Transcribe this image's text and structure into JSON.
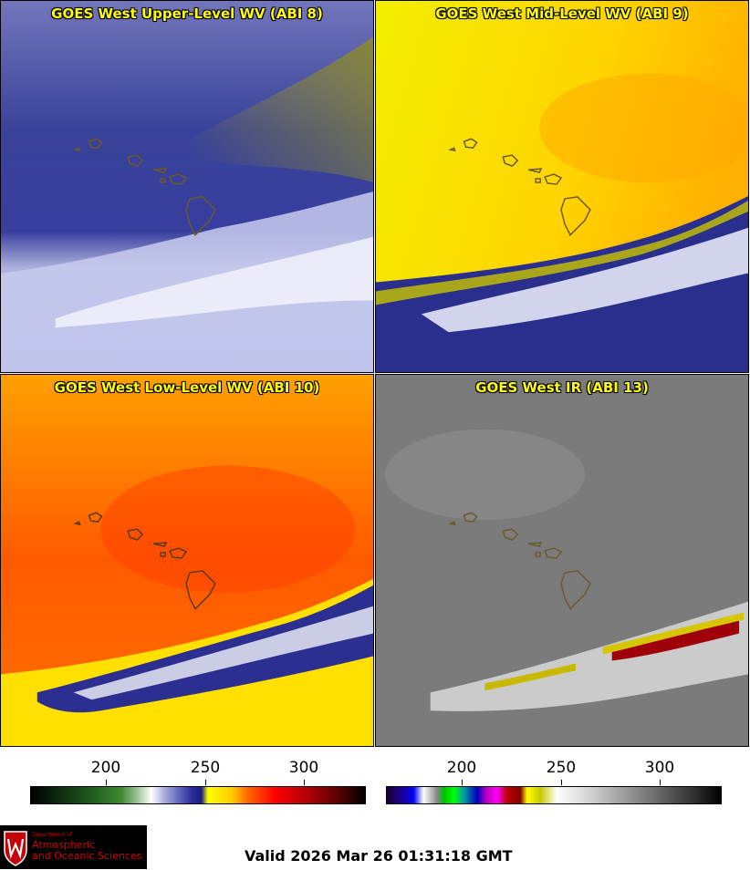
{
  "panels": [
    {
      "title": "GOES West Upper-Level WV (ABI 8)"
    },
    {
      "title": "GOES West Mid-Level WV (ABI 9)"
    },
    {
      "title": "GOES West Low-Level WV (ABI 10)"
    },
    {
      "title": "GOES West IR (ABI 13)"
    }
  ],
  "colorbar_left": {
    "ticks": [
      "200",
      "250",
      "300"
    ]
  },
  "colorbar_right": {
    "ticks": [
      "200",
      "250",
      "300"
    ]
  },
  "logo": {
    "dept": "Department of",
    "name_line1": "Atmospheric",
    "name_line2": "and Oceanic Sciences"
  },
  "valid_time": "Valid 2026 Mar 26 01:31:18 GMT",
  "colors": {
    "title_text": "#ffff00",
    "logo_red": "#c5050c"
  }
}
